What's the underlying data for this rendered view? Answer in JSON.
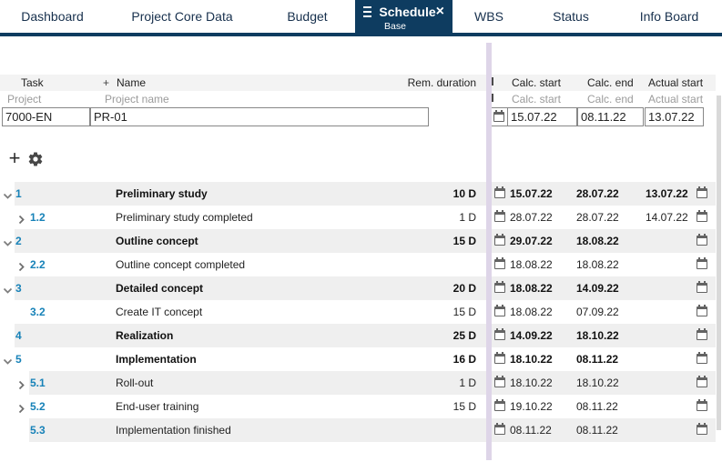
{
  "tab_bar": {
    "tabs": [
      {
        "label": "Dashboard",
        "active": false
      },
      {
        "label": "Project Core Data",
        "active": false
      },
      {
        "label": "Budget",
        "active": false
      },
      {
        "label": "Schedule",
        "active": true,
        "sublabel": "Base"
      },
      {
        "label": "WBS",
        "active": false
      },
      {
        "label": "Status",
        "active": false
      },
      {
        "label": "Info Board",
        "active": false
      }
    ],
    "close_icon": "×"
  },
  "toolbar": {
    "add_icon": "+",
    "settings_icon": "gear"
  },
  "table": {
    "header": {
      "task": "Task",
      "add": "+",
      "name": "Name",
      "rem_duration": "Rem. duration",
      "calc_start": "Calc. start",
      "calc_end": "Calc. end",
      "actual_start": "Actual start"
    },
    "subheader": {
      "task": "Project",
      "name": "Project name",
      "calc_start": "Calc. start",
      "calc_end": "Calc. end",
      "actual_start": "Actual start"
    },
    "project_row": {
      "id": "7000-EN",
      "name": "PR-01",
      "calc_start": "15.07.22",
      "calc_end": "08.11.22",
      "actual_start": "13.07.22"
    },
    "rows": [
      {
        "num": "1",
        "level": 1,
        "chevron": "down",
        "name": "Preliminary study",
        "bold": true,
        "duration": "10 D",
        "calc_start": "15.07.22",
        "calc_end": "28.07.22",
        "actual_start": "13.07.22"
      },
      {
        "num": "1.2",
        "level": 2,
        "chevron": "right",
        "name": "Preliminary study completed",
        "bold": false,
        "duration": "1 D",
        "calc_start": "28.07.22",
        "calc_end": "28.07.22",
        "actual_start": "14.07.22"
      },
      {
        "num": "2",
        "level": 1,
        "chevron": "down",
        "name": "Outline concept",
        "bold": true,
        "duration": "15 D",
        "calc_start": "29.07.22",
        "calc_end": "18.08.22",
        "actual_start": ""
      },
      {
        "num": "2.2",
        "level": 2,
        "chevron": "right",
        "name": "Outline concept completed",
        "bold": false,
        "duration": "",
        "calc_start": "18.08.22",
        "calc_end": "18.08.22",
        "actual_start": ""
      },
      {
        "num": "3",
        "level": 1,
        "chevron": "down",
        "name": "Detailed concept",
        "bold": true,
        "duration": "20 D",
        "calc_start": "18.08.22",
        "calc_end": "14.09.22",
        "actual_start": ""
      },
      {
        "num": "3.2",
        "level": 2,
        "chevron": "none",
        "name": "Create IT concept",
        "bold": false,
        "duration": "15 D",
        "calc_start": "18.08.22",
        "calc_end": "07.09.22",
        "actual_start": ""
      },
      {
        "num": "4",
        "level": 1,
        "chevron": "none",
        "name": "Realization",
        "bold": true,
        "duration": "25 D",
        "calc_start": "14.09.22",
        "calc_end": "18.10.22",
        "actual_start": ""
      },
      {
        "num": "5",
        "level": 1,
        "chevron": "down",
        "name": "Implementation",
        "bold": true,
        "duration": "16 D",
        "calc_start": "18.10.22",
        "calc_end": "08.11.22",
        "actual_start": ""
      },
      {
        "num": "5.1",
        "level": 2,
        "chevron": "right",
        "name": "Roll-out",
        "bold": false,
        "duration": "1 D",
        "calc_start": "18.10.22",
        "calc_end": "18.10.22",
        "actual_start": ""
      },
      {
        "num": "5.2",
        "level": 2,
        "chevron": "right",
        "name": "End-user training",
        "bold": false,
        "duration": "15 D",
        "calc_start": "19.10.22",
        "calc_end": "08.11.22",
        "actual_start": ""
      },
      {
        "num": "5.3",
        "level": 2,
        "chevron": "none",
        "name": "Implementation finished",
        "bold": false,
        "duration": "",
        "calc_start": "08.11.22",
        "calc_end": "08.11.22",
        "actual_start": ""
      }
    ]
  },
  "colors": {
    "accent_navy": "#0e3c60",
    "task_number_blue": "#1782b8",
    "row_stripe_grey": "#efefef",
    "splitter_lavender": "#ded5e8"
  }
}
